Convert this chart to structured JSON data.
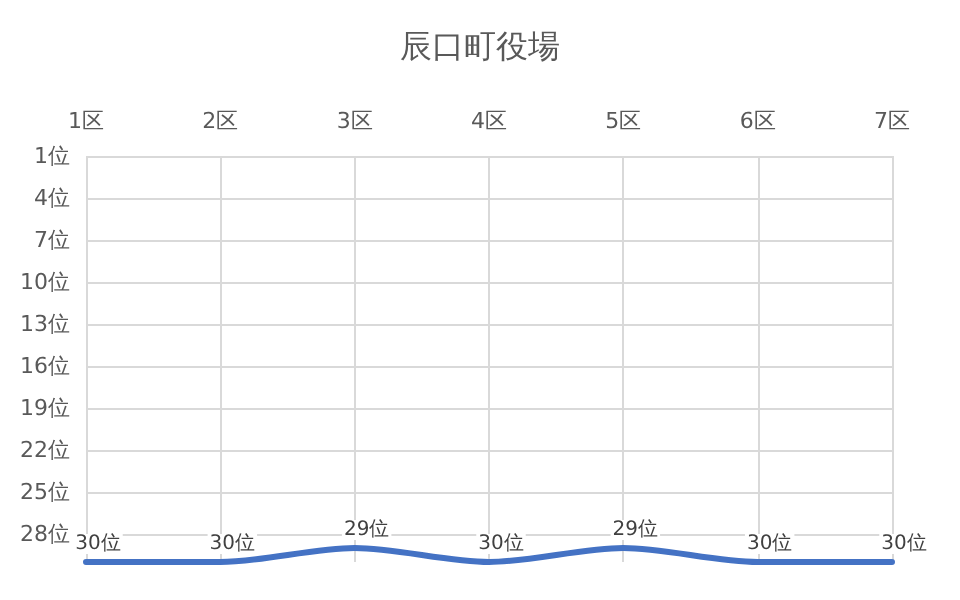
{
  "chart_data": {
    "type": "line",
    "title": "辰口町役場",
    "categories": [
      "1区",
      "2区",
      "3区",
      "4区",
      "5区",
      "6区",
      "7区"
    ],
    "series": [
      {
        "color": "#4472c4",
        "values": [
          30,
          30,
          29,
          30,
          29,
          30,
          30
        ],
        "value_labels": [
          "30位",
          "30位",
          "29位",
          "30位",
          "29位",
          "30位",
          "30位"
        ]
      }
    ],
    "ylim": [
      30,
      1
    ],
    "yticks": [
      {
        "value": 1,
        "label": "1位"
      },
      {
        "value": 4,
        "label": "4位"
      },
      {
        "value": 7,
        "label": "7位"
      },
      {
        "value": 10,
        "label": "10位"
      },
      {
        "value": 13,
        "label": "13位"
      },
      {
        "value": 16,
        "label": "16位"
      },
      {
        "value": 19,
        "label": "19位"
      },
      {
        "value": 22,
        "label": "22位"
      },
      {
        "value": 25,
        "label": "25位"
      },
      {
        "value": 28,
        "label": "28位"
      }
    ],
    "grid": true,
    "marker": "none"
  }
}
